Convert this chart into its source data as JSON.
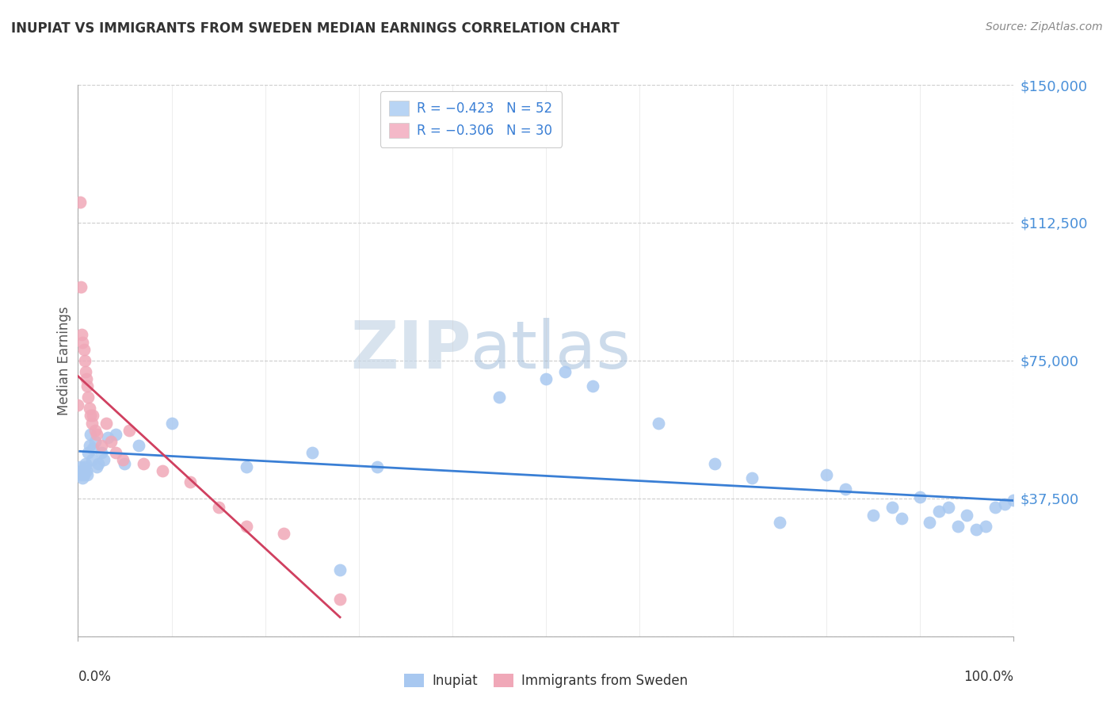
{
  "title": "INUPIAT VS IMMIGRANTS FROM SWEDEN MEDIAN EARNINGS CORRELATION CHART",
  "source": "Source: ZipAtlas.com",
  "ylabel": "Median Earnings",
  "xlim": [
    0.0,
    1.0
  ],
  "ylim": [
    0,
    150000
  ],
  "y_ticks": [
    0,
    37500,
    75000,
    112500,
    150000
  ],
  "y_tick_labels": [
    "",
    "$37,500",
    "$75,000",
    "$112,500",
    "$150,000"
  ],
  "inupiat_color": "#a8c8f0",
  "sweden_color": "#f0a8b8",
  "regression_blue": "#3a7fd5",
  "regression_pink": "#d04060",
  "legend_inupiat_label": "R = −0.423   N = 52",
  "legend_sweden_label": "R = −0.306   N = 30",
  "legend_inupiat_color": "#b8d4f4",
  "legend_sweden_color": "#f4b8c8",
  "watermark_zip": "ZIP",
  "watermark_atlas": "atlas",
  "inupiat_x": [
    0.002,
    0.003,
    0.004,
    0.005,
    0.006,
    0.007,
    0.008,
    0.009,
    0.01,
    0.011,
    0.012,
    0.013,
    0.015,
    0.016,
    0.018,
    0.02,
    0.022,
    0.025,
    0.028,
    0.032,
    0.04,
    0.05,
    0.065,
    0.1,
    0.18,
    0.25,
    0.28,
    0.32,
    0.45,
    0.5,
    0.52,
    0.55,
    0.62,
    0.68,
    0.72,
    0.75,
    0.8,
    0.82,
    0.85,
    0.87,
    0.88,
    0.9,
    0.91,
    0.92,
    0.93,
    0.94,
    0.95,
    0.96,
    0.97,
    0.98,
    0.99,
    1.0
  ],
  "inupiat_y": [
    46000,
    44000,
    45000,
    43000,
    44000,
    46000,
    47000,
    45000,
    44000,
    50000,
    52000,
    55000,
    48000,
    51000,
    53000,
    46000,
    47000,
    50000,
    48000,
    54000,
    55000,
    47000,
    52000,
    58000,
    46000,
    50000,
    18000,
    46000,
    65000,
    70000,
    72000,
    68000,
    58000,
    47000,
    43000,
    31000,
    44000,
    40000,
    33000,
    35000,
    32000,
    38000,
    31000,
    34000,
    35000,
    30000,
    33000,
    29000,
    30000,
    35000,
    36000,
    37000
  ],
  "sweden_x": [
    0.002,
    0.003,
    0.004,
    0.005,
    0.006,
    0.007,
    0.008,
    0.009,
    0.01,
    0.011,
    0.012,
    0.013,
    0.015,
    0.016,
    0.018,
    0.02,
    0.025,
    0.03,
    0.035,
    0.04,
    0.048,
    0.055,
    0.07,
    0.09,
    0.12,
    0.15,
    0.18,
    0.22,
    0.28,
    0.0
  ],
  "sweden_y": [
    118000,
    95000,
    82000,
    80000,
    78000,
    75000,
    72000,
    70000,
    68000,
    65000,
    62000,
    60000,
    58000,
    60000,
    56000,
    55000,
    52000,
    58000,
    53000,
    50000,
    48000,
    56000,
    47000,
    45000,
    42000,
    35000,
    30000,
    28000,
    10000,
    63000
  ]
}
